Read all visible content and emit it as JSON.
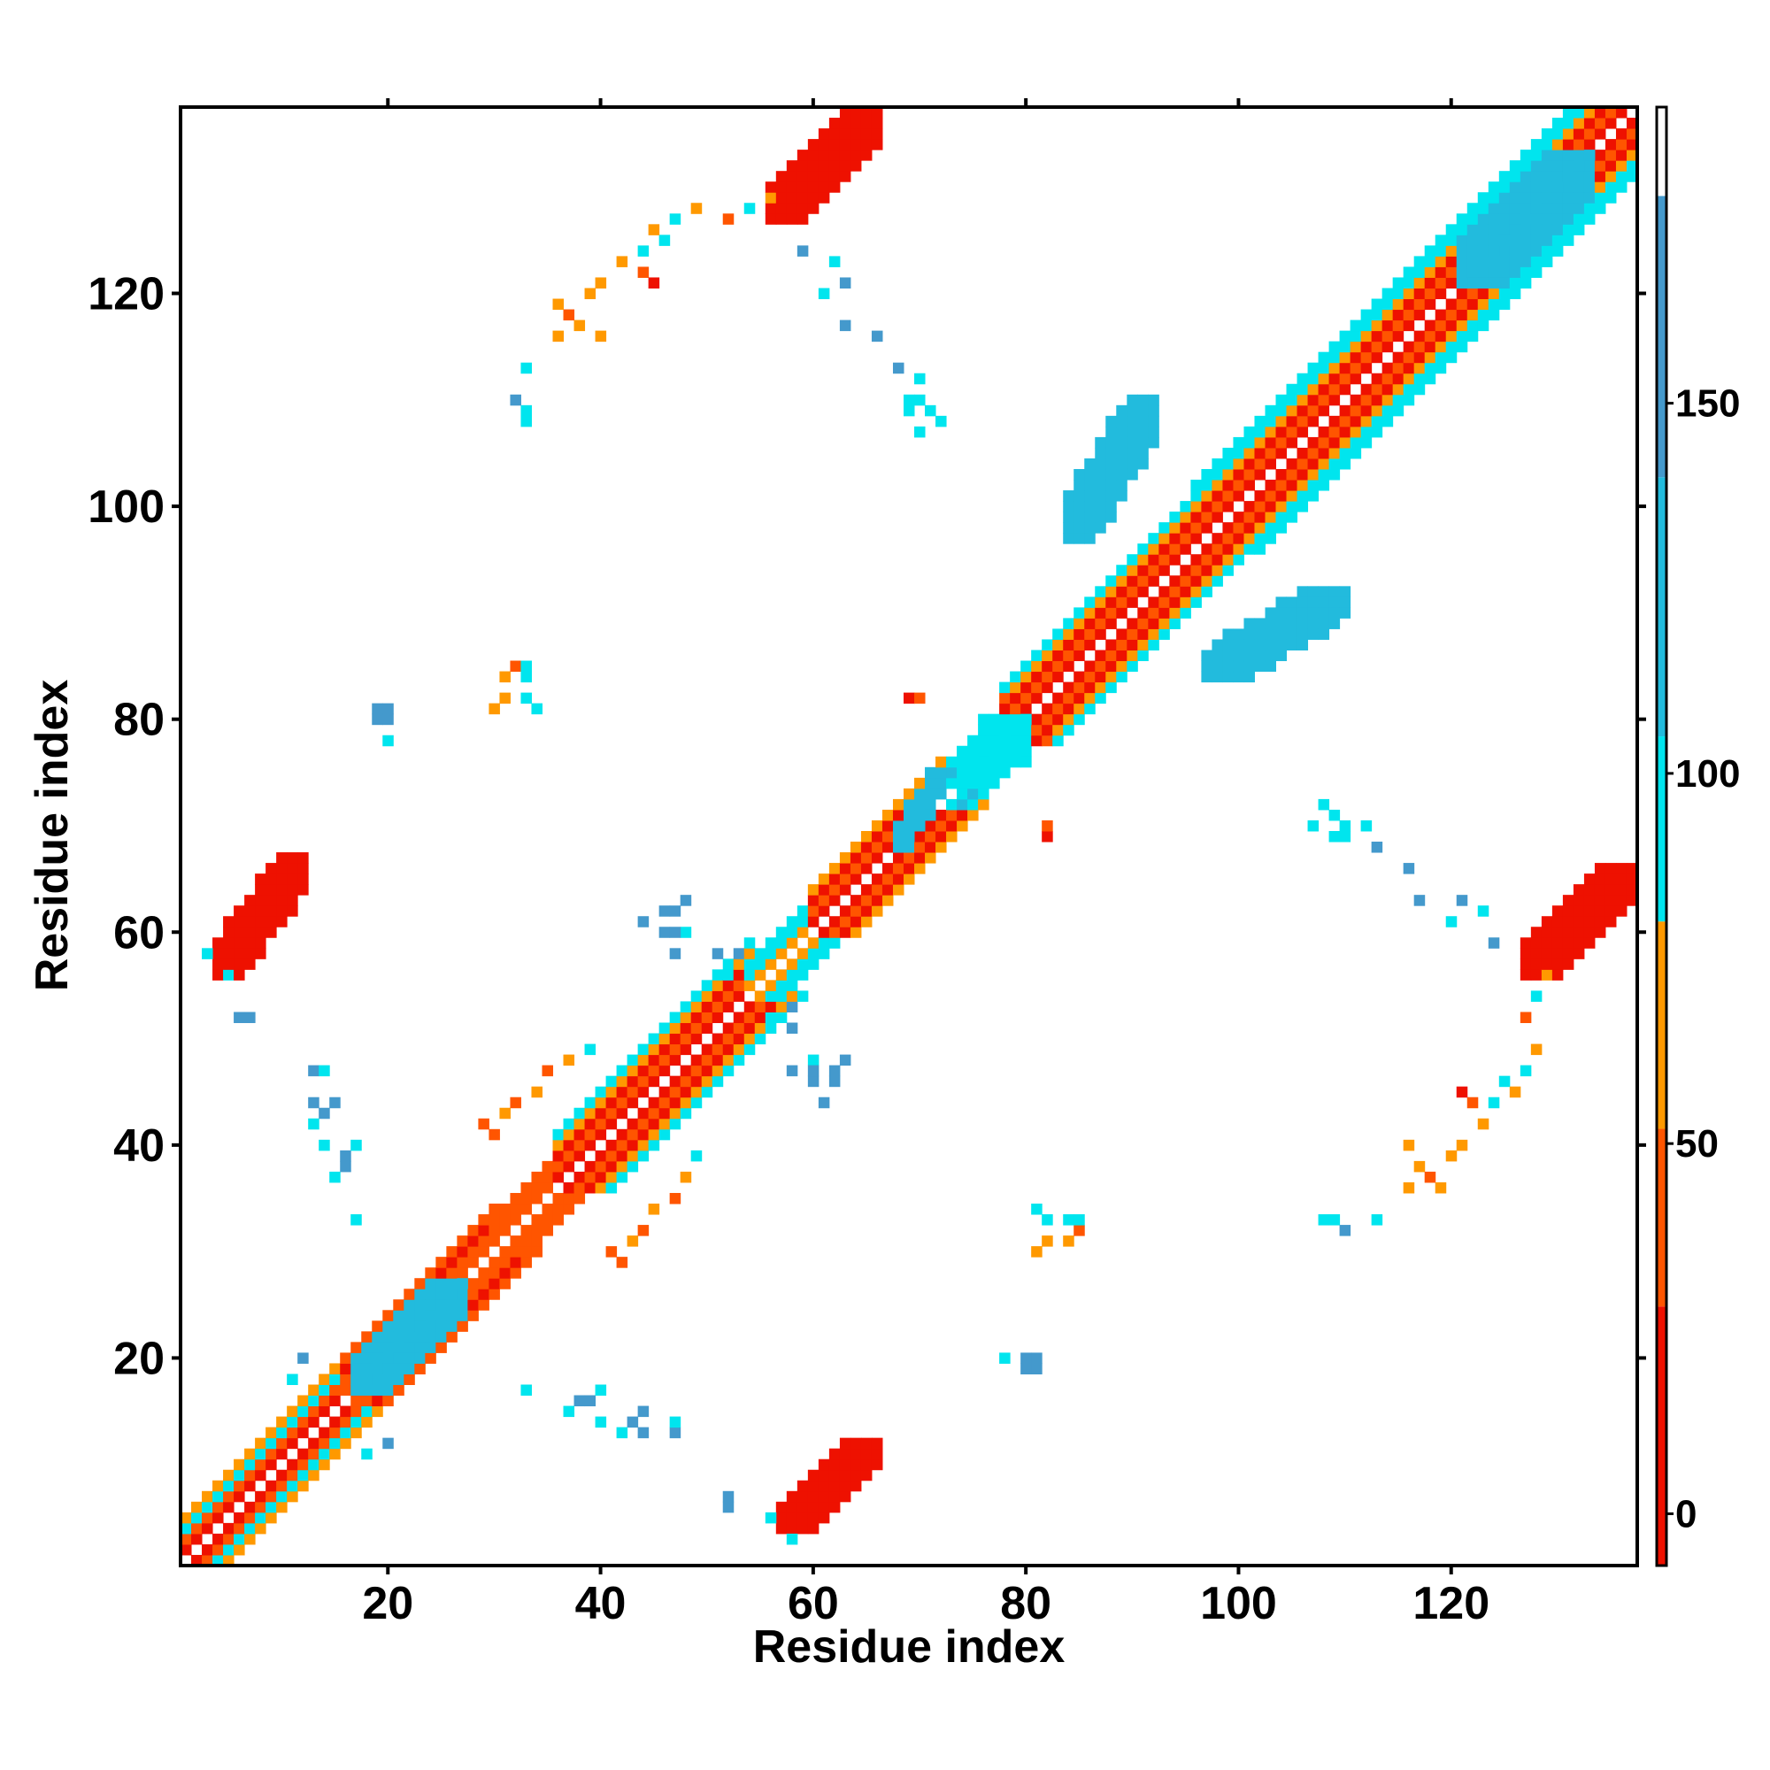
{
  "chart_data": {
    "type": "heatmap",
    "title": "",
    "xlabel": "Residue index",
    "ylabel": "Residue index",
    "xlim": [
      1,
      137
    ],
    "ylim": [
      1,
      137
    ],
    "xticks": [
      20,
      40,
      60,
      80,
      100,
      120
    ],
    "yticks": [
      20,
      40,
      60,
      80,
      100,
      120
    ],
    "symmetric": true,
    "colorbar": {
      "range": [
        -7,
        190
      ],
      "ticks": [
        0,
        50,
        100,
        150
      ],
      "segments": [
        {
          "from": -7,
          "to": 28,
          "color": "#ee1100"
        },
        {
          "from": 28,
          "to": 52,
          "color": "#ff5500"
        },
        {
          "from": 52,
          "to": 80,
          "color": "#ff9900"
        },
        {
          "from": 80,
          "to": 105,
          "color": "#00e5ee"
        },
        {
          "from": 105,
          "to": 140,
          "color": "#22bbdd"
        },
        {
          "from": 140,
          "to": 178,
          "color": "#4499cc"
        },
        {
          "from": 178,
          "to": 190,
          "color": "#ffffff"
        }
      ]
    },
    "diagonal_bands": [
      {
        "from": 1,
        "to": 16,
        "offsets": {
          "1": 8,
          "2": 45,
          "3": 100,
          "4": 60
        }
      },
      {
        "from": 16,
        "to": 30,
        "offsets": {
          "1": 40,
          "2": 30,
          "3": 12,
          "4": 45
        }
      },
      {
        "from": 30,
        "to": 36,
        "offsets": {
          "1": 50,
          "2": 28,
          "3": 40
        }
      },
      {
        "from": 36,
        "to": 54,
        "offsets": {
          "1": 10,
          "2": 45,
          "3": 25,
          "4": 60,
          "5": 100
        }
      },
      {
        "from": 54,
        "to": 60,
        "offsets": {
          "1": 60,
          "2": 100,
          "3": 95
        }
      },
      {
        "from": 60,
        "to": 72,
        "offsets": {
          "1": 8,
          "2": 40,
          "3": 20,
          "4": 60
        }
      },
      {
        "from": 72,
        "to": 78,
        "offsets": {
          "1": 100,
          "2": 120,
          "3": 95
        }
      },
      {
        "from": 78,
        "to": 96,
        "offsets": {
          "1": 10,
          "2": 45,
          "3": 25,
          "4": 60,
          "5": 100
        }
      },
      {
        "from": 96,
        "to": 137,
        "offsets": {
          "1": 10,
          "2": 45,
          "3": 25,
          "4": 60,
          "5": 100,
          "6": 95
        }
      }
    ],
    "contact_blocks": [
      {
        "x": [
          4,
          12
        ],
        "y": [
          56,
          67
        ],
        "value": 10
      },
      {
        "x": [
          57,
          66
        ],
        "y": [
          4,
          12
        ],
        "value": 10
      },
      {
        "x": [
          56,
          66
        ],
        "y": [
          127,
          137
        ],
        "value": 10
      },
      {
        "x": [
          127,
          137
        ],
        "y": [
          56,
          66
        ],
        "value": 10
      },
      {
        "x": [
          17,
          27
        ],
        "y": [
          17,
          27
        ],
        "value": 130
      },
      {
        "x": [
          84,
          92
        ],
        "y": [
          97,
          110
        ],
        "value": 125
      },
      {
        "x": [
          97,
          110
        ],
        "y": [
          84,
          92
        ],
        "value": 125
      },
      {
        "x": [
          121,
          133
        ],
        "y": [
          121,
          133
        ],
        "value": 115
      },
      {
        "x": [
          68,
          72
        ],
        "y": [
          68,
          75
        ],
        "value": 110
      },
      {
        "x": [
          74,
          80
        ],
        "y": [
          74,
          80
        ],
        "value": 100
      }
    ],
    "contact_points": [
      [
        29,
        42,
        50
      ],
      [
        30,
        41,
        50
      ],
      [
        31,
        43,
        60
      ],
      [
        32,
        44,
        50
      ],
      [
        34,
        45,
        55
      ],
      [
        35,
        47,
        50
      ],
      [
        37,
        48,
        60
      ],
      [
        39,
        49,
        95
      ],
      [
        30,
        81,
        60
      ],
      [
        31,
        82,
        55
      ],
      [
        33,
        82,
        95
      ],
      [
        31,
        84,
        55
      ],
      [
        32,
        85,
        50
      ],
      [
        33,
        85,
        95
      ],
      [
        19,
        80,
        150
      ],
      [
        20,
        81,
        150
      ],
      [
        20,
        78,
        95
      ],
      [
        13,
        47,
        150
      ],
      [
        13,
        44,
        150
      ],
      [
        14,
        43,
        150
      ],
      [
        15,
        44,
        150
      ],
      [
        14,
        40,
        150
      ],
      [
        16,
        39,
        150
      ],
      [
        17,
        40,
        95
      ],
      [
        7,
        52,
        150
      ],
      [
        12,
        20,
        150
      ],
      [
        18,
        11,
        95
      ],
      [
        33,
        17,
        95
      ],
      [
        38,
        16,
        150
      ],
      [
        37,
        15,
        95
      ],
      [
        40,
        14,
        95
      ],
      [
        42,
        13,
        95
      ],
      [
        43,
        14,
        150
      ],
      [
        44,
        15,
        150
      ],
      [
        47,
        14,
        95
      ],
      [
        52,
        6,
        150
      ],
      [
        58,
        3,
        95
      ],
      [
        56,
        5,
        95
      ],
      [
        62,
        47,
        150
      ],
      [
        62,
        46,
        150
      ],
      [
        61,
        44,
        150
      ],
      [
        63,
        48,
        150
      ],
      [
        60,
        48,
        95
      ],
      [
        58,
        53,
        150
      ],
      [
        46,
        60,
        150
      ],
      [
        47,
        60,
        150
      ],
      [
        47,
        58,
        150
      ],
      [
        51,
        58,
        150
      ],
      [
        52,
        56,
        95
      ],
      [
        57,
        52,
        95
      ],
      [
        78,
        20,
        95
      ],
      [
        80,
        20,
        150
      ],
      [
        81,
        19,
        150
      ],
      [
        81,
        34,
        95
      ],
      [
        84,
        33,
        95
      ],
      [
        81,
        30,
        60
      ],
      [
        84,
        31,
        60
      ],
      [
        85,
        32,
        50
      ],
      [
        82,
        69,
        20
      ],
      [
        82,
        70,
        40
      ],
      [
        69,
        110,
        95
      ],
      [
        70,
        112,
        95
      ],
      [
        71,
        109,
        95
      ],
      [
        72,
        108,
        95
      ],
      [
        68,
        113,
        150
      ],
      [
        66,
        116,
        150
      ],
      [
        63,
        121,
        150
      ],
      [
        62,
        123,
        95
      ],
      [
        78,
        82,
        50
      ],
      [
        79,
        81,
        40
      ],
      [
        76,
        80,
        95
      ],
      [
        107,
        70,
        95
      ],
      [
        109,
        69,
        95
      ],
      [
        110,
        70,
        95
      ],
      [
        113,
        68,
        150
      ],
      [
        117,
        63,
        150
      ],
      [
        120,
        61,
        95
      ],
      [
        124,
        59,
        150
      ],
      [
        109,
        33,
        95
      ],
      [
        110,
        32,
        150
      ],
      [
        113,
        33,
        95
      ],
      [
        108,
        33,
        95
      ],
      [
        116,
        36,
        60
      ],
      [
        117,
        38,
        60
      ],
      [
        118,
        37,
        50
      ],
      [
        120,
        39,
        60
      ],
      [
        121,
        40,
        55
      ],
      [
        122,
        44,
        50
      ],
      [
        121,
        45,
        20
      ],
      [
        123,
        42,
        60
      ],
      [
        124,
        44,
        95
      ],
      [
        125,
        46,
        95
      ],
      [
        126,
        45,
        60
      ],
      [
        127,
        47,
        95
      ],
      [
        128,
        49,
        60
      ],
      [
        127,
        52,
        50
      ],
      [
        129,
        56,
        55
      ],
      [
        128,
        54,
        95
      ],
      [
        119,
        36,
        55
      ],
      [
        116,
        40,
        60
      ]
    ]
  }
}
